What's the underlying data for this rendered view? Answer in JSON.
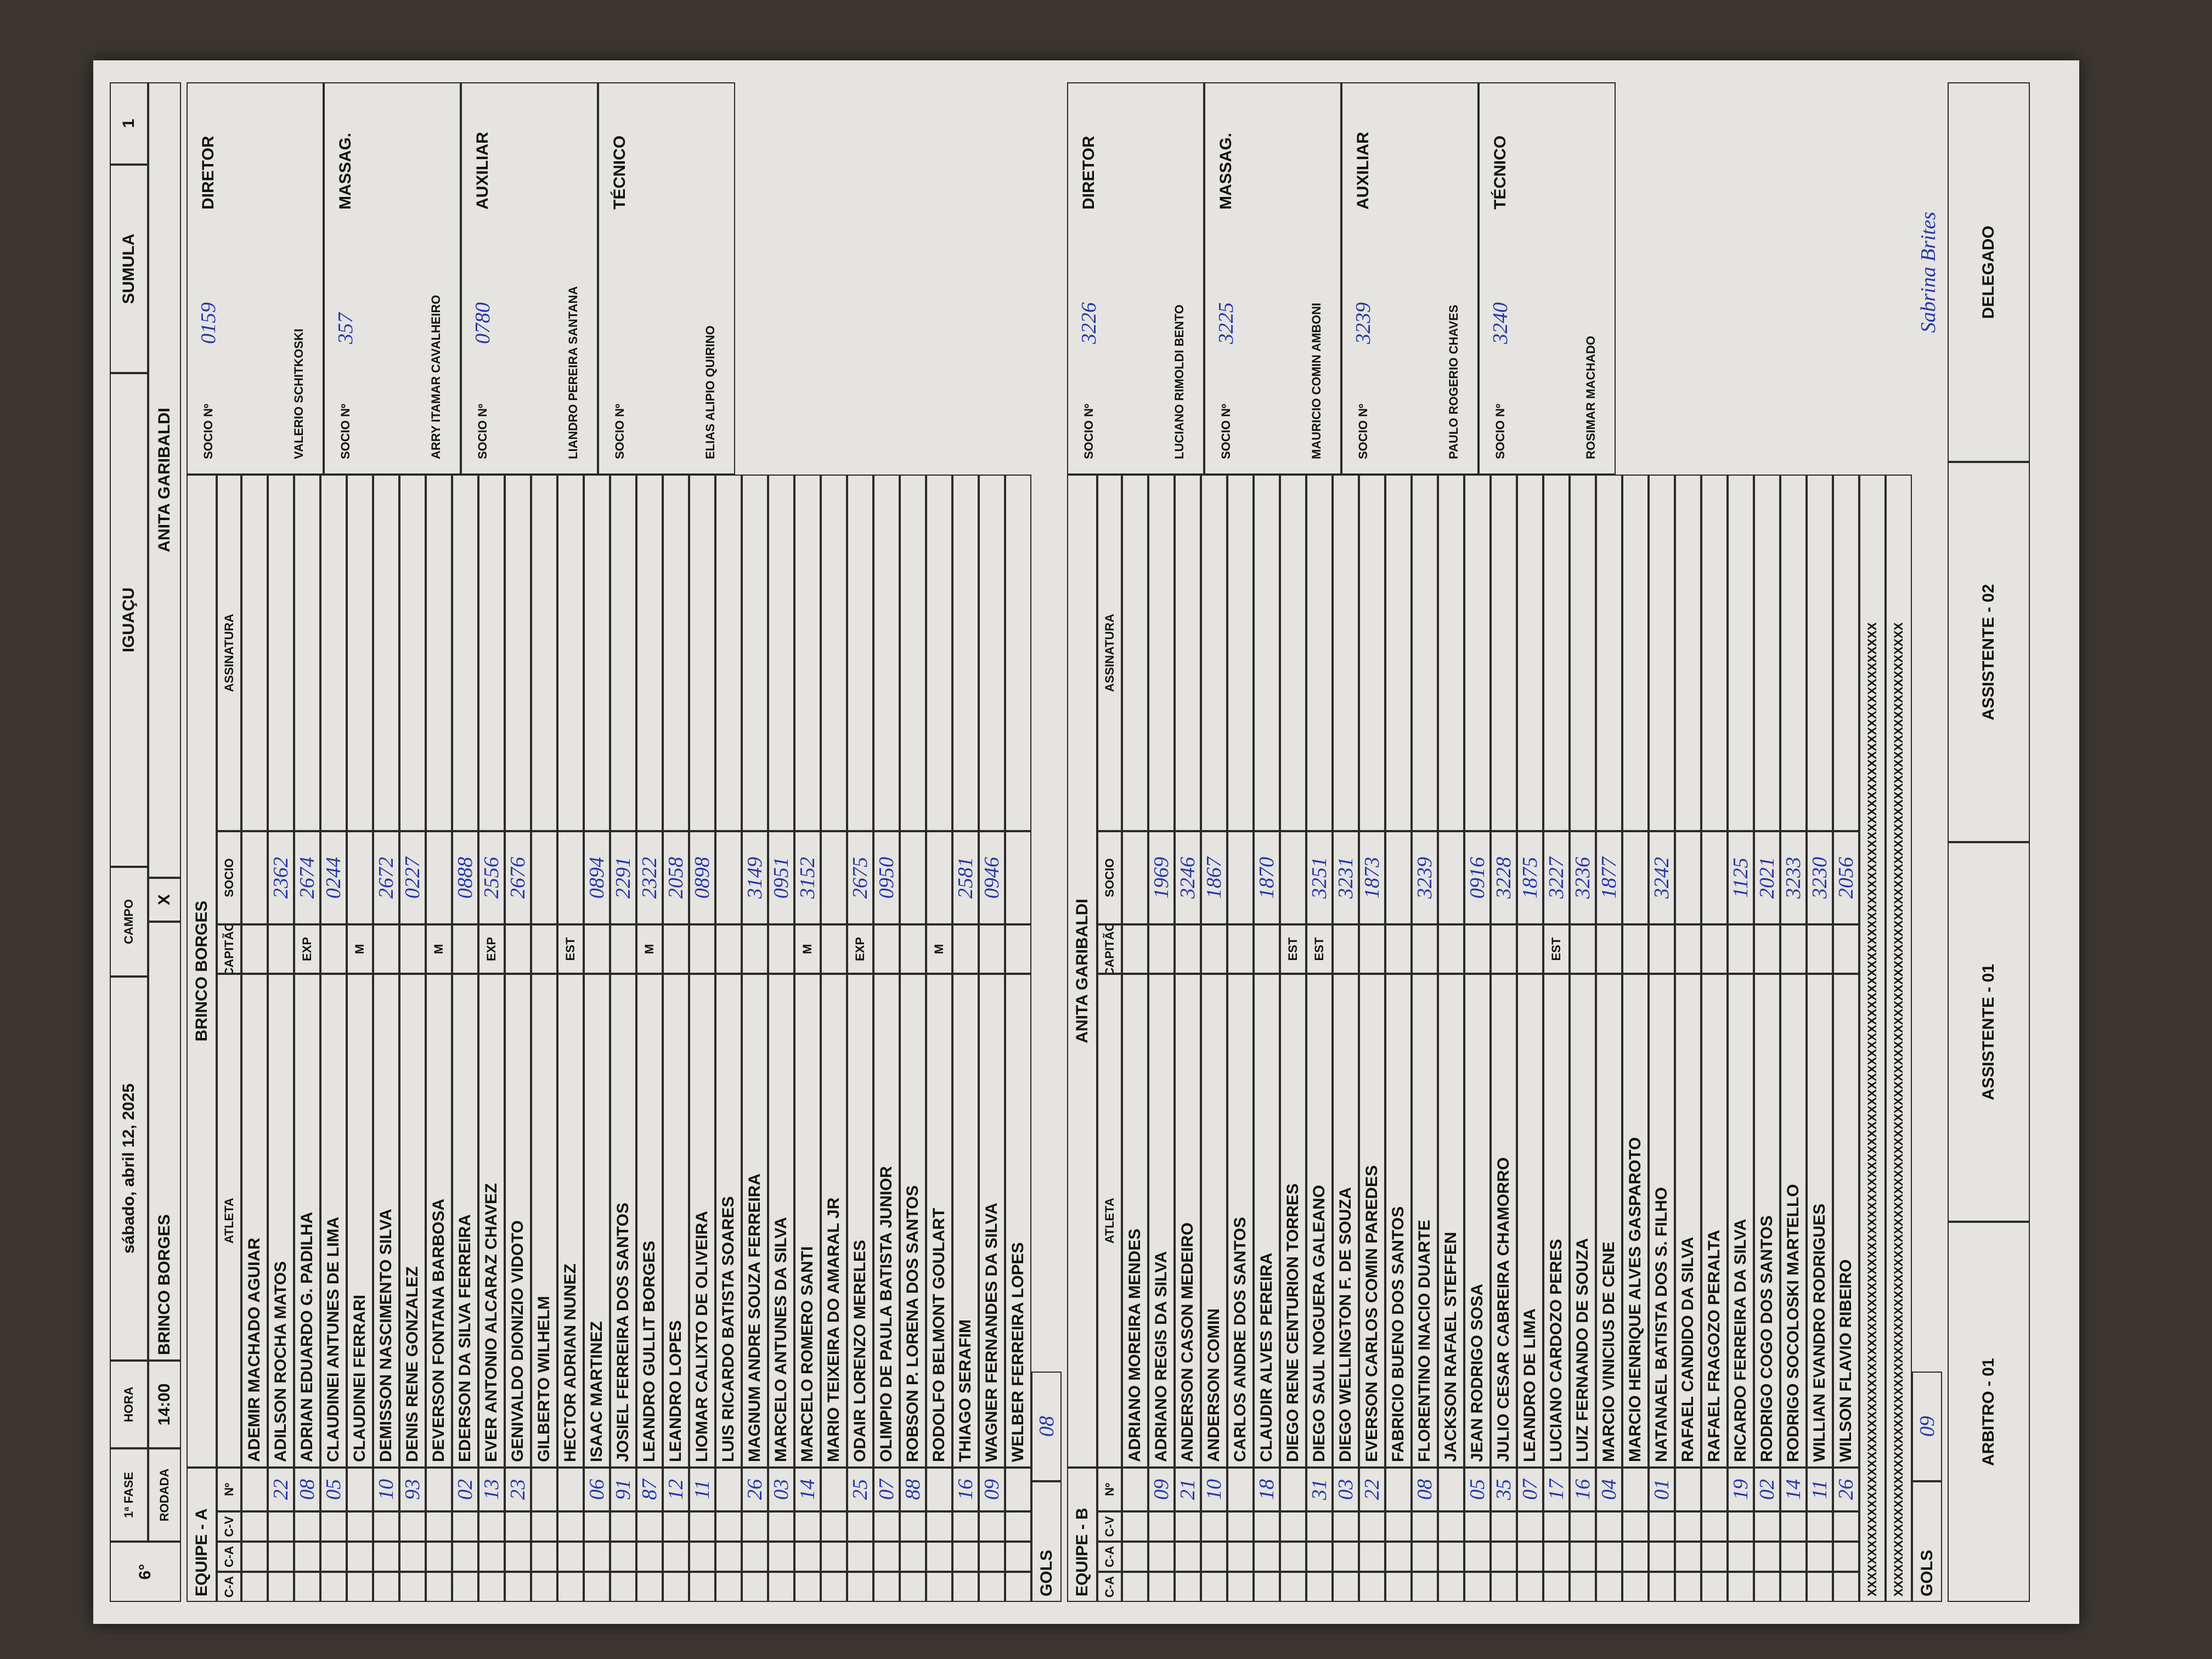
{
  "header": {
    "round": "6°",
    "phase": "1ª FASE",
    "rodada_label": "RODADA",
    "time_label": "HORA",
    "time": "14:00",
    "date": "sábado, abril 12, 2025",
    "field_label": "CAMPO",
    "field": "IGUAÇU",
    "form_label": "SUMULA",
    "form_number": "1",
    "home": "BRINCO BORGES",
    "versus": "X",
    "away": "ANITA GARIBALDI"
  },
  "teams": [
    {
      "label": "EQUIPE - A",
      "name": "BRINCO BORGES",
      "columns": [
        "C-A",
        "C-A",
        "C-V",
        "Nº",
        "ATLETA",
        "CAPITÃO",
        "SOCIO",
        "ASSINATURA"
      ],
      "players": [
        {
          "name": "ADEMIR MACHADO AGUIAR"
        },
        {
          "name": "ADILSON ROCHA MATOS",
          "number": "22",
          "socio": "2362"
        },
        {
          "name": "ADRIAN EDUARDO G. PADILHA",
          "status": "EXP",
          "number": "08",
          "socio": "2674"
        },
        {
          "name": "CLAUDINEI ANTUNES DE LIMA",
          "number": "05",
          "socio": "0244"
        },
        {
          "name": "CLAUDINEI FERRARI",
          "status": "M"
        },
        {
          "name": "DEMISSON NASCIMENTO SILVA",
          "number": "10",
          "socio": "2672"
        },
        {
          "name": "DENIS RENE GONZALEZ",
          "number": "93",
          "socio": "0227"
        },
        {
          "name": "DEVERSON FONTANA BARBOSA",
          "status": "M"
        },
        {
          "name": "EDERSON DA SILVA FERREIRA",
          "number": "02",
          "socio": "0888"
        },
        {
          "name": "EVER ANTONIO ALCARAZ CHAVEZ",
          "status": "EXP",
          "number": "13",
          "socio": "2556"
        },
        {
          "name": "GENIVALDO DIONIZIO VIDOTO",
          "number": "23",
          "socio": "2676"
        },
        {
          "name": "GILBERTO WILHELM"
        },
        {
          "name": "HECTOR ADRIAN NUNEZ",
          "status": "EST"
        },
        {
          "name": "ISAAC MARTINEZ",
          "number": "06",
          "socio": "0894"
        },
        {
          "name": "JOSIEL FERREIRA DOS SANTOS",
          "number": "91",
          "socio": "2291"
        },
        {
          "name": "LEANDRO GULLIT BORGES",
          "status": "M",
          "number": "87",
          "socio": "2322"
        },
        {
          "name": "LEANDRO LOPES",
          "number": "12",
          "socio": "2058"
        },
        {
          "name": "LIOMAR CALIXTO DE OLIVEIRA",
          "number": "11",
          "socio": "0898"
        },
        {
          "name": "LUIS RICARDO BATISTA SOARES"
        },
        {
          "name": "MAGNUM ANDRE SOUZA FERREIRA",
          "number": "26",
          "socio": "3149"
        },
        {
          "name": "MARCELO ANTUNES DA SILVA",
          "number": "03",
          "socio": "0951"
        },
        {
          "name": "MARCELO ROMERO SANTI",
          "status": "M",
          "number": "14",
          "socio": "3152"
        },
        {
          "name": "MARIO TEIXEIRA DO AMARAL JR"
        },
        {
          "name": "ODAIR LORENZO MERELES",
          "status": "EXP",
          "number": "25",
          "socio": "2675"
        },
        {
          "name": "OLIMPIO DE PAULA BATISTA JUNIOR",
          "number": "07",
          "socio": "0950"
        },
        {
          "name": "ROBSON P. LORENA DOS SANTOS",
          "number": "88"
        },
        {
          "name": "RODOLFO BELMONT GOULART",
          "status": "M"
        },
        {
          "name": "THIAGO SERAFIM",
          "number": "16",
          "socio": "2581"
        },
        {
          "name": "WAGNER FERNANDES DA SILVA",
          "number": "09",
          "socio": "0946"
        },
        {
          "name": "WELBER FERREIRA LOPES"
        }
      ],
      "goals_label": "GOLS",
      "goals": "08",
      "staff": [
        {
          "role": "DIRETOR",
          "socio_label": "SOCIO Nº",
          "socio": "0159",
          "name": "VALERIO SCHITKOSKI"
        },
        {
          "role": "MASSAG.",
          "socio_label": "SOCIO Nº",
          "socio": "357",
          "name": "ARRY ITAMAR CAVALHEIRO"
        },
        {
          "role": "AUXILIAR",
          "socio_label": "SOCIO Nº",
          "socio": "0780",
          "name": "LIANDRO PEREIRA SANTANA"
        },
        {
          "role": "TÉCNICO",
          "socio_label": "SOCIO Nº",
          "name": "ELIAS ALIPIO QUIRINO"
        }
      ]
    },
    {
      "label": "EQUIPE - B",
      "name": "ANITA GARIBALDI",
      "columns": [
        "C-A",
        "C-A",
        "C-V",
        "Nº",
        "ATLETA",
        "CAPITÃO",
        "SOCIO",
        "ASSINATURA"
      ],
      "players": [
        {
          "name": "ADRIANO MOREIRA MENDES"
        },
        {
          "name": "ADRIANO REGIS DA SILVA",
          "number": "09",
          "socio": "1969"
        },
        {
          "name": "ANDERSON CASON MEDEIRO",
          "number": "21",
          "socio": "3246"
        },
        {
          "name": "ANDERSON COMIN",
          "number": "10",
          "socio": "1867"
        },
        {
          "name": "CARLOS ANDRE DOS SANTOS"
        },
        {
          "name": "CLAUDIR ALVES PEREIRA",
          "number": "18",
          "socio": "1870"
        },
        {
          "name": "DIEGO RENE CENTURION TORRES",
          "status": "EST"
        },
        {
          "name": "DIEGO SAUL NOGUERA GALEANO",
          "status": "EST",
          "number": "31",
          "socio": "3251"
        },
        {
          "name": "DIEGO WELLINGTON F. DE SOUZA",
          "number": "03",
          "socio": "3231"
        },
        {
          "name": "EVERSON CARLOS COMIN PAREDES",
          "number": "22",
          "socio": "1873"
        },
        {
          "name": "FABRICIO BUENO DOS SANTOS"
        },
        {
          "name": "FLORENTINO INACIO DUARTE",
          "number": "08",
          "socio": "3239"
        },
        {
          "name": "JACKSON RAFAEL STEFFEN"
        },
        {
          "name": "JEAN RODRIGO SOSA",
          "number": "05",
          "socio": "0916"
        },
        {
          "name": "JULIO CESAR CABREIRA CHAMORRO",
          "number": "35",
          "socio": "3228"
        },
        {
          "name": "LEANDRO DE LIMA",
          "number": "07",
          "socio": "1875"
        },
        {
          "name": "LUCIANO CARDOZO PERES",
          "status": "EST",
          "number": "17",
          "socio": "3227"
        },
        {
          "name": "LUIZ FERNANDO DE SOUZA",
          "number": "16",
          "socio": "3236"
        },
        {
          "name": "MARCIO VINICIUS DE CENE",
          "number": "04",
          "socio": "1877"
        },
        {
          "name": "MARCIO HENRIQUE ALVES GASPAROTO"
        },
        {
          "name": "NATANAEL BATISTA DOS S. FILHO",
          "number": "01",
          "socio": "3242"
        },
        {
          "name": "RAFAEL CANDIDO DA SILVA"
        },
        {
          "name": "RAFAEL FRAGOZO PERALTA"
        },
        {
          "name": "RICARDO FERREIRA DA SILVA",
          "number": "19",
          "socio": "1125"
        },
        {
          "name": "RODRIGO COGO DOS SANTOS",
          "number": "02",
          "socio": "2021"
        },
        {
          "name": "RODRIGO SOCOLOSKI MARTELLO",
          "number": "14",
          "socio": "3233"
        },
        {
          "name": "WILLIAN EVANDRO RODRIGUES",
          "number": "11",
          "socio": "3230"
        },
        {
          "name": "WILSON FLAVIO RIBEIRO",
          "number": "26",
          "socio": "2056"
        }
      ],
      "filler": "XXXXXXXXXXXXXXXXXXXXXXXXXXXXXXXXXXXXXXXXXXXXXXXXXXXXXXXXXXXXXXXXXXXXXXXXXXXXXXXXXXXXXXXXXXXXXXXXXXXXXXXXXXXXXXXXXXXXXXXXX",
      "goals_label": "GOLS",
      "goals": "09",
      "staff": [
        {
          "role": "DIRETOR",
          "socio_label": "SOCIO Nº",
          "socio": "3226",
          "name": "LUCIANO RIMOLDI BENTO"
        },
        {
          "role": "MASSAG.",
          "socio_label": "SOCIO Nº",
          "socio": "3225",
          "name": "MAURICIO COMIN AMBONI"
        },
        {
          "role": "AUXILIAR",
          "socio_label": "SOCIO Nº",
          "socio": "3239",
          "name": "PAULO ROGERIO CHAVES"
        },
        {
          "role": "TÉCNICO",
          "socio_label": "SOCIO Nº",
          "socio": "3240",
          "name": "ROSIMAR MACHADO"
        }
      ]
    }
  ],
  "officials": {
    "referee": "ARBITRO - 01",
    "assistant_1": "ASSISTENTE - 01",
    "assistant_2": "ASSISTENTE - 02",
    "delegate": "DELEGADO",
    "delegate_signature": "Sabrina Brites"
  }
}
